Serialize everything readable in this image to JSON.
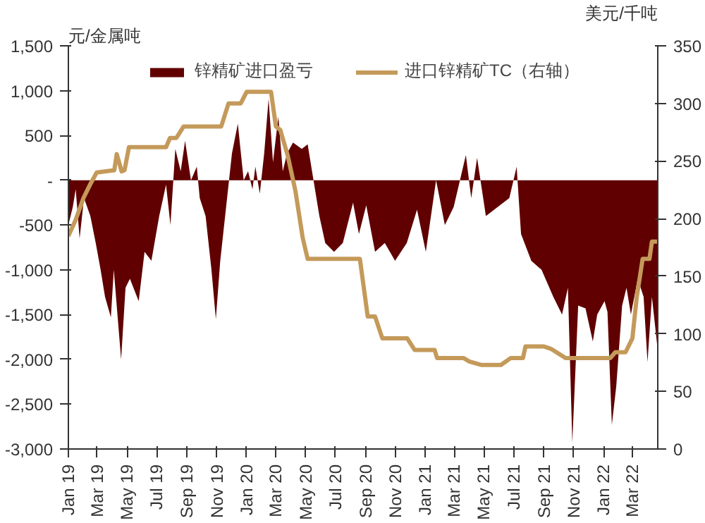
{
  "chart_data": {
    "type": "area",
    "ylabel": "元/金属吨",
    "y2label": "美元/千吨",
    "legend": "top",
    "grid": false,
    "xlim": [
      "2019-01-01",
      "2022-04-22"
    ],
    "xticks": [
      {
        "value": "2019-01-01",
        "label": "Jan 19"
      },
      {
        "value": "2019-03-01",
        "label": "Mar 19"
      },
      {
        "value": "2019-05-01",
        "label": "May 19"
      },
      {
        "value": "2019-07-01",
        "label": "Jul 19"
      },
      {
        "value": "2019-09-01",
        "label": "Sep 19"
      },
      {
        "value": "2019-11-01",
        "label": "Nov 19"
      },
      {
        "value": "2020-01-01",
        "label": "Jan 20"
      },
      {
        "value": "2020-03-01",
        "label": "Mar 20"
      },
      {
        "value": "2020-05-01",
        "label": "May 20"
      },
      {
        "value": "2020-07-01",
        "label": "Jul 20"
      },
      {
        "value": "2020-09-01",
        "label": "Sep 20"
      },
      {
        "value": "2020-11-01",
        "label": "Nov 20"
      },
      {
        "value": "2021-01-01",
        "label": "Jan 21"
      },
      {
        "value": "2021-03-01",
        "label": "Mar 21"
      },
      {
        "value": "2021-05-01",
        "label": "May 21"
      },
      {
        "value": "2021-07-01",
        "label": "Jul 21"
      },
      {
        "value": "2021-09-01",
        "label": "Sep 21"
      },
      {
        "value": "2021-11-01",
        "label": "Nov 21"
      },
      {
        "value": "2022-01-01",
        "label": "Jan 22"
      },
      {
        "value": "2022-03-01",
        "label": "Mar 22"
      }
    ],
    "ylim": [
      -3000,
      1500
    ],
    "yticks": [
      {
        "value": 1500,
        "label": "1,500"
      },
      {
        "value": 1000,
        "label": "1,000"
      },
      500,
      {
        "value": 0,
        "label": "-"
      },
      -500,
      {
        "value": -1000,
        "label": "-1,000"
      },
      {
        "value": -1500,
        "label": "-1,500"
      },
      {
        "value": -2000,
        "label": "-2,000"
      },
      {
        "value": -2500,
        "label": "-2,500"
      },
      {
        "value": -3000,
        "label": "-3,000"
      }
    ],
    "y2lim": [
      0,
      350
    ],
    "y2ticks": [
      0,
      50,
      100,
      150,
      200,
      250,
      300,
      350
    ],
    "series": [
      {
        "name": "锌精矿进口盈亏",
        "color": "#600000",
        "x": [
          "2019-01-01",
          "2019-01-10",
          "2019-01-16",
          "2019-01-24",
          "2019-02-02",
          "2019-02-15",
          "2019-02-26",
          "2019-03-08",
          "2019-03-17",
          "2019-03-29",
          "2019-04-04",
          "2019-04-19",
          "2019-04-28",
          "2019-05-07",
          "2019-05-25",
          "2019-06-06",
          "2019-06-20",
          "2019-07-06",
          "2019-07-20",
          "2019-07-29",
          "2019-08-08",
          "2019-08-19",
          "2019-08-28",
          "2019-09-09",
          "2019-09-21",
          "2019-09-27",
          "2019-10-09",
          "2019-10-21",
          "2019-10-30",
          "2019-11-08",
          "2019-11-20",
          "2019-12-02",
          "2019-12-14",
          "2019-12-26",
          "2020-01-04",
          "2020-01-13",
          "2020-01-19",
          "2020-01-28",
          "2020-02-06",
          "2020-02-15",
          "2020-02-24",
          "2020-03-06",
          "2020-03-15",
          "2020-03-24",
          "2020-04-05",
          "2020-04-23",
          "2020-05-05",
          "2020-05-17",
          "2020-05-29",
          "2020-06-10",
          "2020-06-28",
          "2020-07-16",
          "2020-08-06",
          "2020-08-18",
          "2020-09-02",
          "2020-09-20",
          "2020-10-10",
          "2020-10-31",
          "2020-11-24",
          "2020-12-15",
          "2021-01-02",
          "2021-01-23",
          "2021-02-10",
          "2021-02-28",
          "2021-03-25",
          "2021-04-05",
          "2021-04-17",
          "2021-05-05",
          "2021-05-29",
          "2021-06-22",
          "2021-07-07",
          "2021-07-16",
          "2021-08-06",
          "2021-08-27",
          "2021-09-20",
          "2021-10-08",
          "2021-10-20",
          "2021-10-29",
          "2021-11-10",
          "2021-11-25",
          "2021-12-10",
          "2021-12-19",
          "2022-01-03",
          "2022-01-09",
          "2022-01-18",
          "2022-01-27",
          "2022-02-08",
          "2022-02-17",
          "2022-02-26",
          "2022-03-12",
          "2022-03-24",
          "2022-04-01",
          "2022-04-10",
          "2022-04-22"
        ],
        "values": [
          -500,
          -300,
          -100,
          -650,
          -200,
          -400,
          -700,
          -1000,
          -1300,
          -1530,
          -1000,
          -2000,
          -1200,
          -1100,
          -1350,
          -800,
          -900,
          -400,
          -50,
          -500,
          350,
          100,
          440,
          0,
          150,
          -200,
          -400,
          -1000,
          -1550,
          -900,
          -300,
          300,
          630,
          0,
          100,
          -100,
          150,
          -150,
          300,
          910,
          200,
          710,
          100,
          300,
          420,
          350,
          400,
          0,
          -400,
          -700,
          -800,
          -700,
          -250,
          -600,
          -280,
          -800,
          -700,
          -900,
          -700,
          -330,
          -800,
          0,
          -500,
          -300,
          280,
          -200,
          250,
          -400,
          -300,
          -200,
          150,
          -600,
          -900,
          -1000,
          -1300,
          -1500,
          -1200,
          -2930,
          -1400,
          -1430,
          -1800,
          -1500,
          -1350,
          -1470,
          -2730,
          -2300,
          -1400,
          -1200,
          -1500,
          -1100,
          -1300,
          -2030,
          -1300,
          -1900
        ]
      },
      {
        "name": "进口锌精矿TC（右轴）",
        "type": "line",
        "axis": "y2",
        "color": "#c49a5a",
        "x": [
          "2019-01-01",
          "2019-01-16",
          "2019-02-01",
          "2019-02-15",
          "2019-02-28",
          "2019-04-05",
          "2019-04-10",
          "2019-04-20",
          "2019-04-26",
          "2019-05-05",
          "2019-07-20",
          "2019-07-28",
          "2019-08-10",
          "2019-08-25",
          "2019-11-10",
          "2019-11-25",
          "2019-12-20",
          "2020-01-01",
          "2020-02-20",
          "2020-03-01",
          "2020-03-10",
          "2020-03-25",
          "2020-04-10",
          "2020-04-25",
          "2020-05-05",
          "2020-08-20",
          "2020-09-05",
          "2020-09-20",
          "2020-10-05",
          "2020-11-25",
          "2020-12-10",
          "2021-01-20",
          "2021-01-25",
          "2021-03-20",
          "2021-04-01",
          "2021-04-25",
          "2021-06-05",
          "2021-06-25",
          "2021-07-20",
          "2021-07-25",
          "2021-09-01",
          "2021-09-15",
          "2021-10-15",
          "2022-01-15",
          "2022-01-25",
          "2022-02-15",
          "2022-03-01",
          "2022-03-10",
          "2022-03-22",
          "2022-04-05",
          "2022-04-10",
          "2022-04-22"
        ],
        "values": [
          185,
          199,
          218,
          230,
          240,
          242,
          256,
          241,
          242,
          262,
          262,
          270,
          270,
          280,
          280,
          300,
          300,
          310,
          310,
          280,
          277,
          255,
          224,
          183,
          165,
          165,
          115,
          115,
          96,
          96,
          86,
          86,
          79,
          79,
          76,
          73,
          73,
          79,
          79,
          89,
          89,
          87,
          79,
          79,
          84,
          84,
          96,
          132,
          165,
          165,
          180,
          180
        ]
      }
    ]
  }
}
